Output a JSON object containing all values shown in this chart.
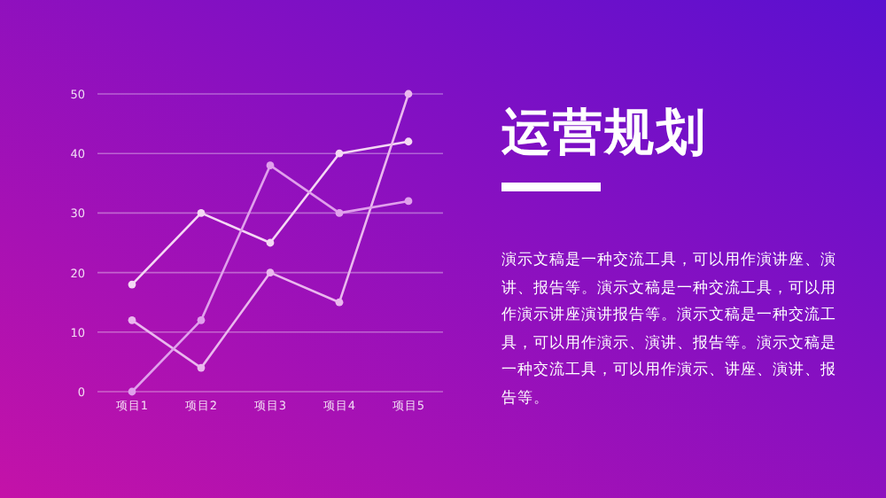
{
  "chart_data": [
    {
      "type": "line",
      "categories": [
        "项目1",
        "项目2",
        "项目3",
        "项目4",
        "项目5"
      ],
      "series": [
        {
          "color": "#f4d8f4",
          "values": [
            18,
            30,
            25,
            40,
            42
          ]
        },
        {
          "color": "#eab8ee",
          "values": [
            12,
            4,
            20,
            15,
            50
          ]
        },
        {
          "color": "#e0a0ec",
          "values": [
            0,
            12,
            38,
            30,
            32
          ]
        }
      ],
      "ylim": [
        0,
        50
      ],
      "yticks": [
        0,
        10,
        20,
        30,
        40,
        50
      ],
      "grid": "y",
      "marker": "circle"
    },
    {
      "type": "other",
      "title": "运营规划",
      "annotations": [
        "演示文稿是一种交流工具，可以用作演讲座、演讲、报告等。演示文稿是一种交流工具，可以用作演示讲座演讲报告等。演示文稿是一种交流工具，可以用作演示、演讲、报告等。演示文稿是一种交流工具，可以用作演示、讲座、演讲、报告等。"
      ]
    }
  ]
}
